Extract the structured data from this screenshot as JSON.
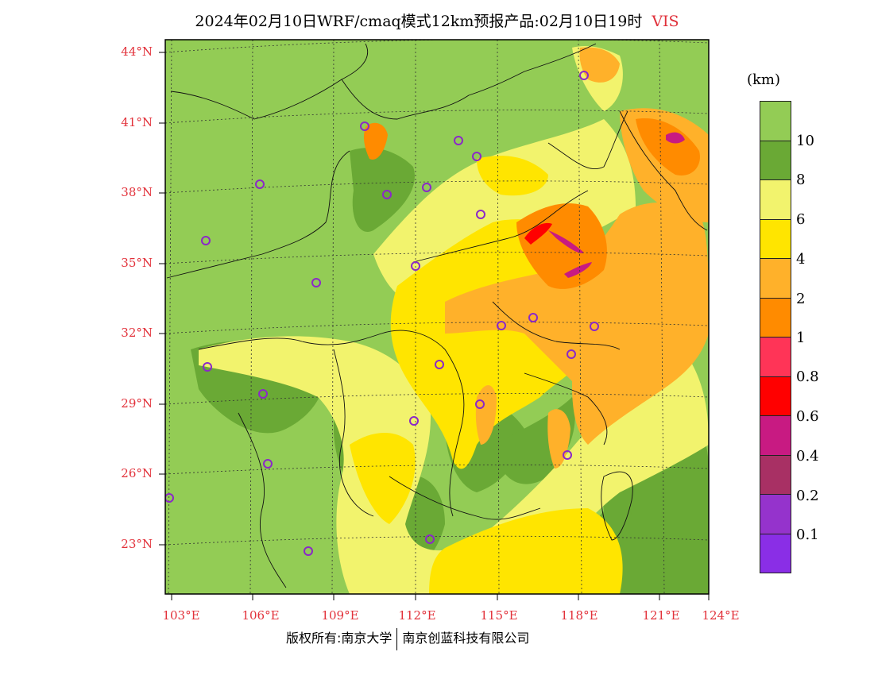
{
  "title": {
    "main": "2024年02月10日WRF/cmaq模式12km预报产品:02月10日19时",
    "variable": "VIS",
    "variable_color": "#e0303a"
  },
  "axes": {
    "latitude_labels": [
      "44°N",
      "41°N",
      "38°N",
      "35°N",
      "32°N",
      "29°N",
      "26°N",
      "23°N"
    ],
    "longitude_labels": [
      "103°E",
      "106°E",
      "109°E",
      "112°E",
      "115°E",
      "118°E",
      "121°E",
      "124°E"
    ],
    "label_color": "#e2313a"
  },
  "legend": {
    "unit": "(km)",
    "levels": [
      "10",
      "8",
      "6",
      "4",
      "2",
      "1",
      "0.8",
      "0.6",
      "0.4",
      "0.2",
      "0.1"
    ],
    "colors": [
      "#93cc55",
      "#6aa935",
      "#f2f36d",
      "#ffe500",
      "#ffb12a",
      "#ff8b00",
      "#ff3457",
      "#ff0000",
      "#c81a82",
      "#a83064",
      "#9533cc",
      "#8a2ee6"
    ]
  },
  "footer": {
    "left": "版权所有:南京大学",
    "right": "南京创蓝科技有限公司"
  }
}
